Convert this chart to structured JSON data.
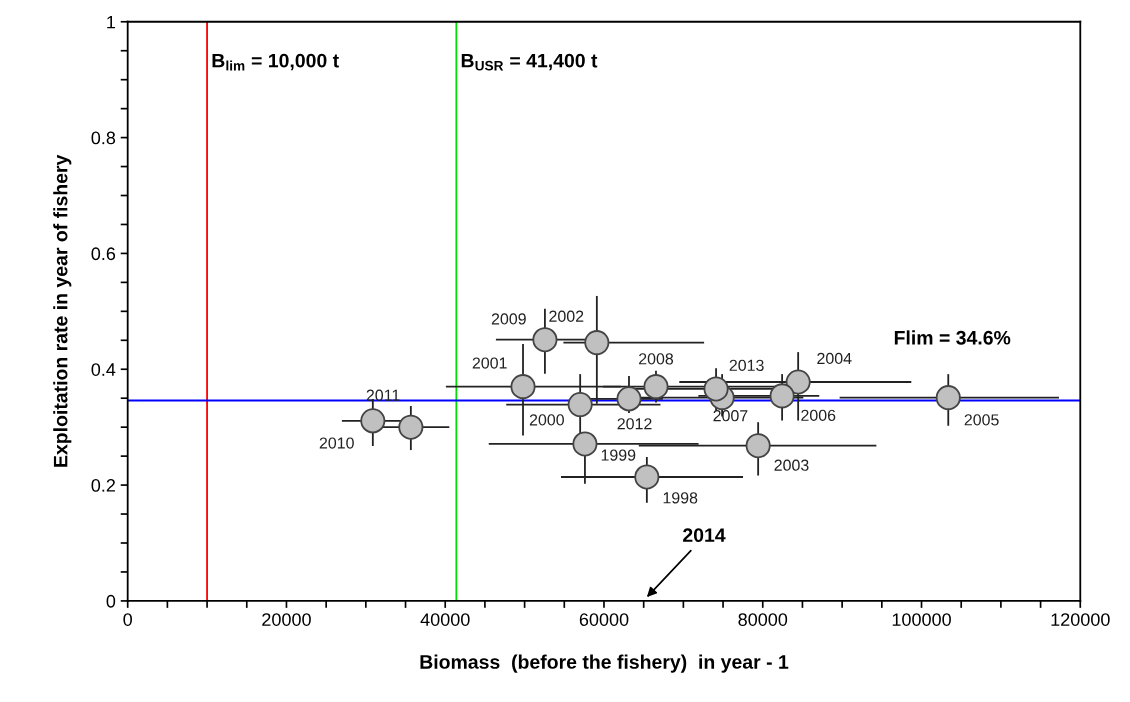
{
  "chart_data": {
    "type": "scatter",
    "xlabel": "Biomass  (before the fishery)  in year - 1",
    "ylabel": "Exploitation rate in year of fishery",
    "x": [
      65400,
      57600,
      57000,
      49800,
      59100,
      79420,
      84460,
      103370,
      82440,
      74880,
      66550,
      52560,
      30880,
      35670,
      63150,
      74120
    ],
    "series": [
      {
        "color": "#c0c0c0",
        "values": [
          0.214,
          0.271,
          0.339,
          0.37,
          0.446,
          0.268,
          0.378,
          0.351,
          0.354,
          0.351,
          0.37,
          0.451,
          0.311,
          0.3,
          0.349,
          0.366
        ],
        "errors": [
          [
            0.171,
            0.247
          ],
          [
            0.204,
            0.271
          ],
          [
            0.29,
            0.39
          ],
          [
            0.287,
            0.442
          ],
          [
            0.342,
            0.525
          ],
          [
            0.218,
            0.307
          ],
          [
            0.313,
            0.428
          ],
          [
            0.304,
            0.39
          ],
          [
            0.313,
            0.39
          ],
          [
            0.32,
            0.39
          ],
          [
            0.344,
            0.396
          ],
          [
            0.394,
            0.503
          ],
          [
            0.269,
            0.347
          ],
          [
            0.262,
            0.335
          ],
          [
            0.326,
            0.387
          ],
          [
            0.33,
            0.4
          ]
        ],
        "xerrors": [
          [
            54700,
            77400
          ],
          [
            45600,
            71800
          ],
          [
            47800,
            67000
          ],
          [
            40200,
            62000
          ],
          [
            55000,
            72500
          ],
          [
            64500,
            94200
          ],
          [
            69600,
            98600
          ],
          [
            89800,
            117200
          ],
          [
            72000,
            87000
          ],
          [
            62000,
            85000
          ],
          [
            60000,
            84000
          ],
          [
            46500,
            58000
          ],
          [
            27100,
            36000
          ],
          [
            32000,
            40400
          ],
          [
            58000,
            67300
          ],
          [
            64000,
            82000
          ]
        ]
      }
    ],
    "marker": "circle",
    "xlim": [
      0,
      120000
    ],
    "xticks": [
      0,
      {
        "value": 5000,
        "label": null
      },
      {
        "value": 10000,
        "label": null
      },
      {
        "value": 15000,
        "label": null
      },
      20000,
      {
        "value": 25000,
        "label": null
      },
      {
        "value": 30000,
        "label": null
      },
      {
        "value": 35000,
        "label": null
      },
      40000,
      {
        "value": 45000,
        "label": null
      },
      {
        "value": 50000,
        "label": null
      },
      {
        "value": 55000,
        "label": null
      },
      60000,
      {
        "value": 65000,
        "label": null
      },
      {
        "value": 70000,
        "label": null
      },
      {
        "value": 75000,
        "label": null
      },
      80000,
      {
        "value": 85000,
        "label": null
      },
      {
        "value": 90000,
        "label": null
      },
      {
        "value": 95000,
        "label": null
      },
      100000,
      {
        "value": 105000,
        "label": null
      },
      {
        "value": 110000,
        "label": null
      },
      {
        "value": 115000,
        "label": null
      },
      120000
    ],
    "ylim": [
      0,
      1
    ],
    "yticks": [
      0,
      {
        "value": 0.05,
        "label": null
      },
      {
        "value": 0.1,
        "label": null
      },
      {
        "value": 0.15,
        "label": null
      },
      0.2,
      {
        "value": 0.25,
        "label": null
      },
      {
        "value": 0.3,
        "label": null
      },
      {
        "value": 0.35,
        "label": null
      },
      0.4,
      {
        "value": 0.45,
        "label": null
      },
      {
        "value": 0.5,
        "label": null
      },
      {
        "value": 0.55,
        "label": null
      },
      0.6,
      {
        "value": 0.65,
        "label": null
      },
      {
        "value": 0.7,
        "label": null
      },
      {
        "value": 0.75,
        "label": null
      },
      0.8,
      {
        "value": 0.85,
        "label": null
      },
      {
        "value": 0.9,
        "label": null
      },
      {
        "value": 0.95,
        "label": null
      },
      1
    ],
    "ref_lines": [
      {
        "axis": "x",
        "value": 10000,
        "label": "B$_{lim}$ = 10,000 t",
        "color": "#ff0000"
      },
      {
        "axis": "x",
        "value": 41400,
        "label": "B$_{USR}$ = 41,400 t",
        "color": "#00e000"
      },
      {
        "axis": "y",
        "value": 0.346,
        "label": "Flim = 34.6%",
        "color": "#0000ff"
      }
    ],
    "annotations": [
      {
        "text": "1998",
        "x": 65400,
        "y": 0.214
      },
      {
        "text": "1999",
        "x": 57600,
        "y": 0.271
      },
      {
        "text": "2000",
        "x": 57000,
        "y": 0.339
      },
      {
        "text": "2001",
        "x": 49800,
        "y": 0.37
      },
      {
        "text": "2002",
        "x": 59100,
        "y": 0.446
      },
      {
        "text": "2003",
        "x": 79420,
        "y": 0.268
      },
      {
        "text": "2004",
        "x": 84460,
        "y": 0.378
      },
      {
        "text": "2005",
        "x": 103370,
        "y": 0.351
      },
      {
        "text": "2006",
        "x": 82440,
        "y": 0.354
      },
      {
        "text": "2007",
        "x": 74880,
        "y": 0.351
      },
      {
        "text": "2008",
        "x": 66550,
        "y": 0.37
      },
      {
        "text": "2009",
        "x": 52560,
        "y": 0.451
      },
      {
        "text": "2010",
        "x": 30880,
        "y": 0.311
      },
      {
        "text": "2011",
        "x": 35670,
        "y": 0.3
      },
      {
        "text": "2012",
        "x": 63150,
        "y": 0.349
      },
      {
        "text": "2013",
        "x": 74120,
        "y": 0.366
      },
      "2014"
    ],
    "grid": false
  }
}
